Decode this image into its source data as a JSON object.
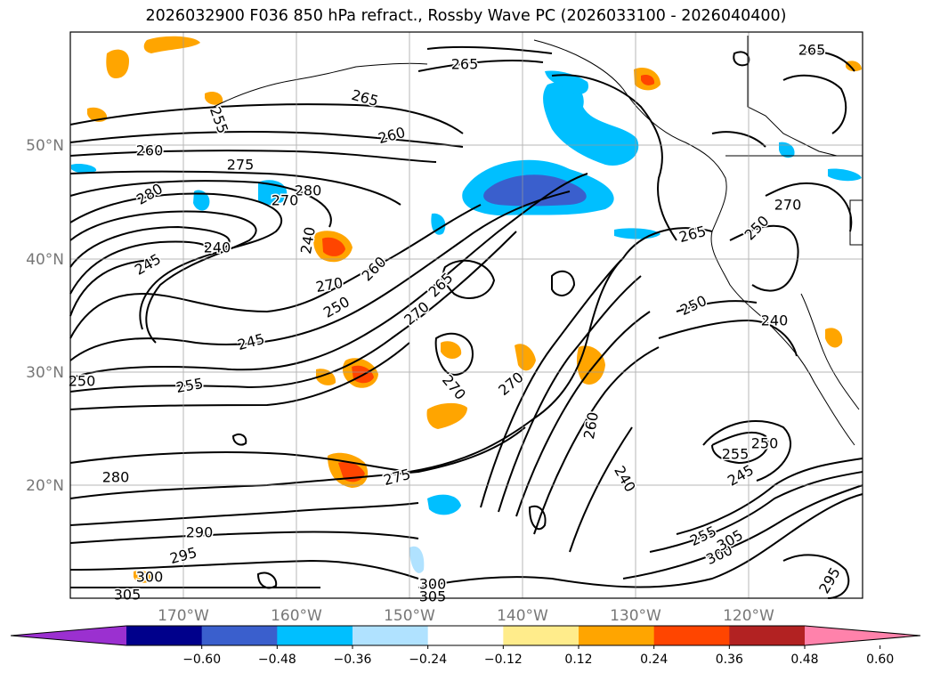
{
  "title": "2026032900 F036 850 hPa refract., Rossby Wave PC (2026033100 - 2026040400)",
  "axes": {
    "lat_labels": [
      "50°N",
      "40°N",
      "30°N",
      "20°N"
    ],
    "lon_labels": [
      "170°W",
      "160°W",
      "150°W",
      "140°W",
      "130°W",
      "120°W"
    ]
  },
  "contour_labels": [
    "265",
    "265",
    "265",
    "255",
    "260",
    "260",
    "275",
    "280",
    "280",
    "270",
    "240",
    "240",
    "245",
    "270",
    "260",
    "250",
    "265",
    "270",
    "245",
    "255",
    "250",
    "270",
    "270",
    "260",
    "240",
    "280",
    "275",
    "290",
    "295",
    "300",
    "305",
    "300",
    "305",
    "250",
    "265",
    "270",
    "250",
    "240",
    "255",
    "250",
    "245",
    "255",
    "300",
    "305",
    "295"
  ],
  "colorbar": {
    "ticks": [
      "−0.60",
      "−0.48",
      "−0.36",
      "−0.24",
      "−0.12",
      "0.12",
      "0.24",
      "0.36",
      "0.48",
      "0.60"
    ],
    "colors": [
      "#9b30d0",
      "#00008b",
      "#3a5fcd",
      "#00bfff",
      "#b0e2ff",
      "#ffffff",
      "#ffec8b",
      "#ffa500",
      "#ff4500",
      "#b22222",
      "#ff82ab"
    ]
  }
}
